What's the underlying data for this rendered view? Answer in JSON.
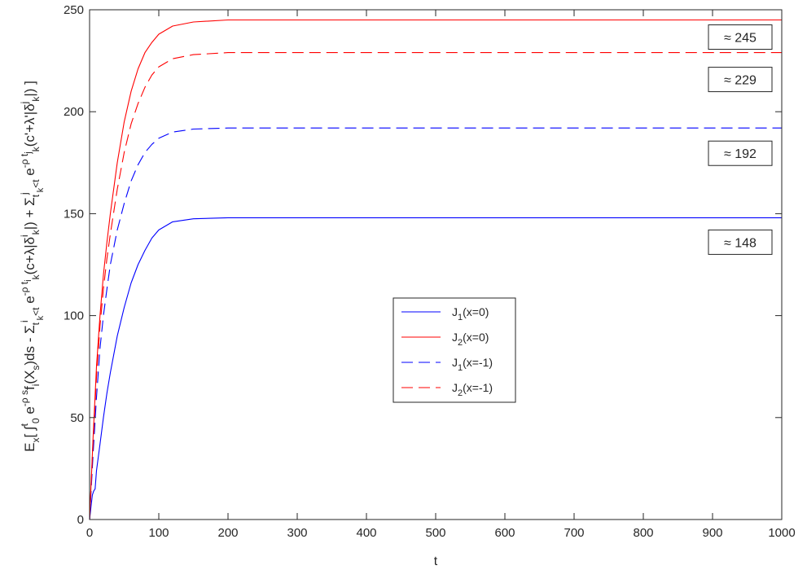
{
  "chart_data": {
    "type": "line",
    "xlabel": "t",
    "ylabel": "E_x[ ∫_0^t e^{-ρs} f_i(X_s) ds - Σ_{t_k^i<t} e^{-ρ t_k^i}(c+λ|δ_k^i|) + Σ_{t_k^j<t} e^{-ρ t_k^j}(c'+λ'|δ_k^j|) ]",
    "ylabel_rich": [
      {
        "t": "E"
      },
      {
        "t": "x",
        "s": "sub"
      },
      {
        "t": "[ "
      },
      {
        "t": "∫"
      },
      {
        "t": "t",
        "s": "sup"
      },
      {
        "t": "0",
        "s": "sub"
      },
      {
        "t": " e"
      },
      {
        "t": "-ρ s",
        "s": "sup"
      },
      {
        "t": "f"
      },
      {
        "t": "i",
        "s": "sub"
      },
      {
        "t": "(X"
      },
      {
        "t": "s",
        "s": "sub"
      },
      {
        "t": ")ds - Σ"
      },
      {
        "t": "t",
        "s": "sub"
      },
      {
        "t": "i",
        "s": "sup"
      },
      {
        "t": "k",
        "s": "sub2"
      },
      {
        "t": "<t",
        "s": "sub"
      },
      {
        "t": " e"
      },
      {
        "t": "-ρ t",
        "s": "sup"
      },
      {
        "t": "i",
        "s": "sup2"
      },
      {
        "t": "k",
        "s": "sub"
      },
      {
        "t": "(c+λ|δ"
      },
      {
        "t": "i",
        "s": "sup"
      },
      {
        "t": "k",
        "s": "sub"
      },
      {
        "t": "|) + Σ"
      },
      {
        "t": "t",
        "s": "sub"
      },
      {
        "t": "j",
        "s": "sup"
      },
      {
        "t": "k",
        "s": "sub2"
      },
      {
        "t": "<t",
        "s": "sub"
      },
      {
        "t": " e"
      },
      {
        "t": "-ρ t",
        "s": "sup"
      },
      {
        "t": "j",
        "s": "sup2"
      },
      {
        "t": "k",
        "s": "sub"
      },
      {
        "t": "(c'+λ'|δ"
      },
      {
        "t": "j",
        "s": "sup"
      },
      {
        "t": "k",
        "s": "sub"
      },
      {
        "t": "|) ]"
      }
    ],
    "xlim": [
      0,
      1000
    ],
    "ylim": [
      0,
      250
    ],
    "xticks": [
      0,
      100,
      200,
      300,
      400,
      500,
      600,
      700,
      800,
      900,
      1000
    ],
    "yticks": [
      0,
      50,
      100,
      150,
      200,
      250
    ],
    "grid": false,
    "legend_position": "center",
    "series": [
      {
        "name": "J_1(x=0)",
        "label_main": "J",
        "label_sub": "1",
        "label_rest": "(x=0)",
        "color": "#0000ff",
        "dash": "solid",
        "x": [
          0,
          2,
          4,
          6,
          8,
          10,
          15,
          20,
          25,
          30,
          40,
          50,
          60,
          70,
          80,
          90,
          100,
          120,
          150,
          200,
          300,
          500,
          1000
        ],
        "y": [
          0,
          6,
          12,
          14,
          15,
          24,
          37,
          50,
          62,
          72,
          90,
          104,
          116,
          125,
          132,
          138,
          142,
          146,
          147.5,
          148,
          148,
          148,
          148
        ]
      },
      {
        "name": "J_2(x=0)",
        "label_main": "J",
        "label_sub": "2",
        "label_rest": "(x=0)",
        "color": "#ff0000",
        "dash": "solid",
        "x": [
          0,
          5,
          10,
          15,
          20,
          25,
          30,
          40,
          50,
          60,
          70,
          80,
          90,
          100,
          120,
          150,
          200,
          300,
          500,
          1000
        ],
        "y": [
          0,
          40,
          75,
          100,
          120,
          136,
          150,
          175,
          195,
          210,
          221,
          229,
          234,
          238,
          242,
          244,
          245,
          245,
          245,
          245
        ]
      },
      {
        "name": "J_1(x=-1)",
        "label_main": "J",
        "label_sub": "1",
        "label_rest": "(x=-1)",
        "color": "#0000ff",
        "dash": "dashed",
        "x": [
          0,
          5,
          10,
          15,
          20,
          25,
          30,
          40,
          50,
          60,
          70,
          80,
          90,
          100,
          120,
          150,
          200,
          300,
          500,
          1000
        ],
        "y": [
          0,
          32,
          60,
          84,
          100,
          113,
          125,
          142,
          155,
          166,
          174,
          180,
          184,
          187,
          190,
          191.5,
          192,
          192,
          192,
          192
        ]
      },
      {
        "name": "J_2(x=-1)",
        "label_main": "J",
        "label_sub": "2",
        "label_rest": "(x=-1)",
        "color": "#ff0000",
        "dash": "dashed",
        "x": [
          0,
          5,
          10,
          15,
          20,
          25,
          30,
          40,
          50,
          60,
          70,
          80,
          90,
          100,
          120,
          150,
          200,
          300,
          500,
          1000
        ],
        "y": [
          0,
          38,
          70,
          95,
          113,
          128,
          140,
          162,
          180,
          194,
          204,
          212,
          218,
          222,
          226,
          228,
          229,
          229,
          229,
          229
        ]
      }
    ],
    "annotations": [
      {
        "text": "≈ 245",
        "value": 245
      },
      {
        "text": "≈ 229",
        "value": 229
      },
      {
        "text": "≈ 192",
        "value": 192
      },
      {
        "text": "≈ 148",
        "value": 148
      }
    ]
  }
}
